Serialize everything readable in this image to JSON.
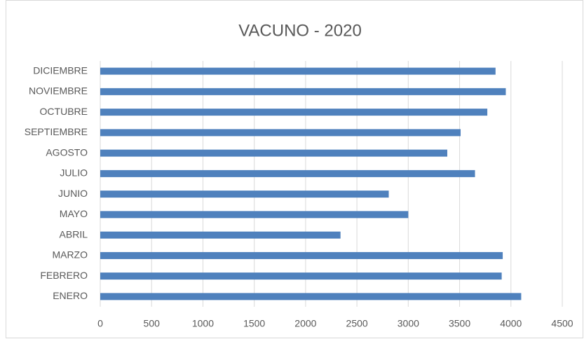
{
  "chart_data": {
    "type": "bar",
    "orientation": "horizontal",
    "title": "VACUNO - 2020",
    "categories": [
      "ENERO",
      "FEBRERO",
      "MARZO",
      "ABRIL",
      "MAYO",
      "JUNIO",
      "JULIO",
      "AGOSTO",
      "SEPTIEMBRE",
      "OCTUBRE",
      "NOVIEMBRE",
      "DICIEMBRE"
    ],
    "values": [
      4100,
      3910,
      3920,
      2340,
      3000,
      2810,
      3650,
      3380,
      3510,
      3770,
      3950,
      3850
    ],
    "color": "#4f81bd",
    "xlim": [
      0,
      4500
    ],
    "xticks": [
      0,
      500,
      1000,
      1500,
      2000,
      2500,
      3000,
      3500,
      4000,
      4500
    ],
    "grid": true
  }
}
